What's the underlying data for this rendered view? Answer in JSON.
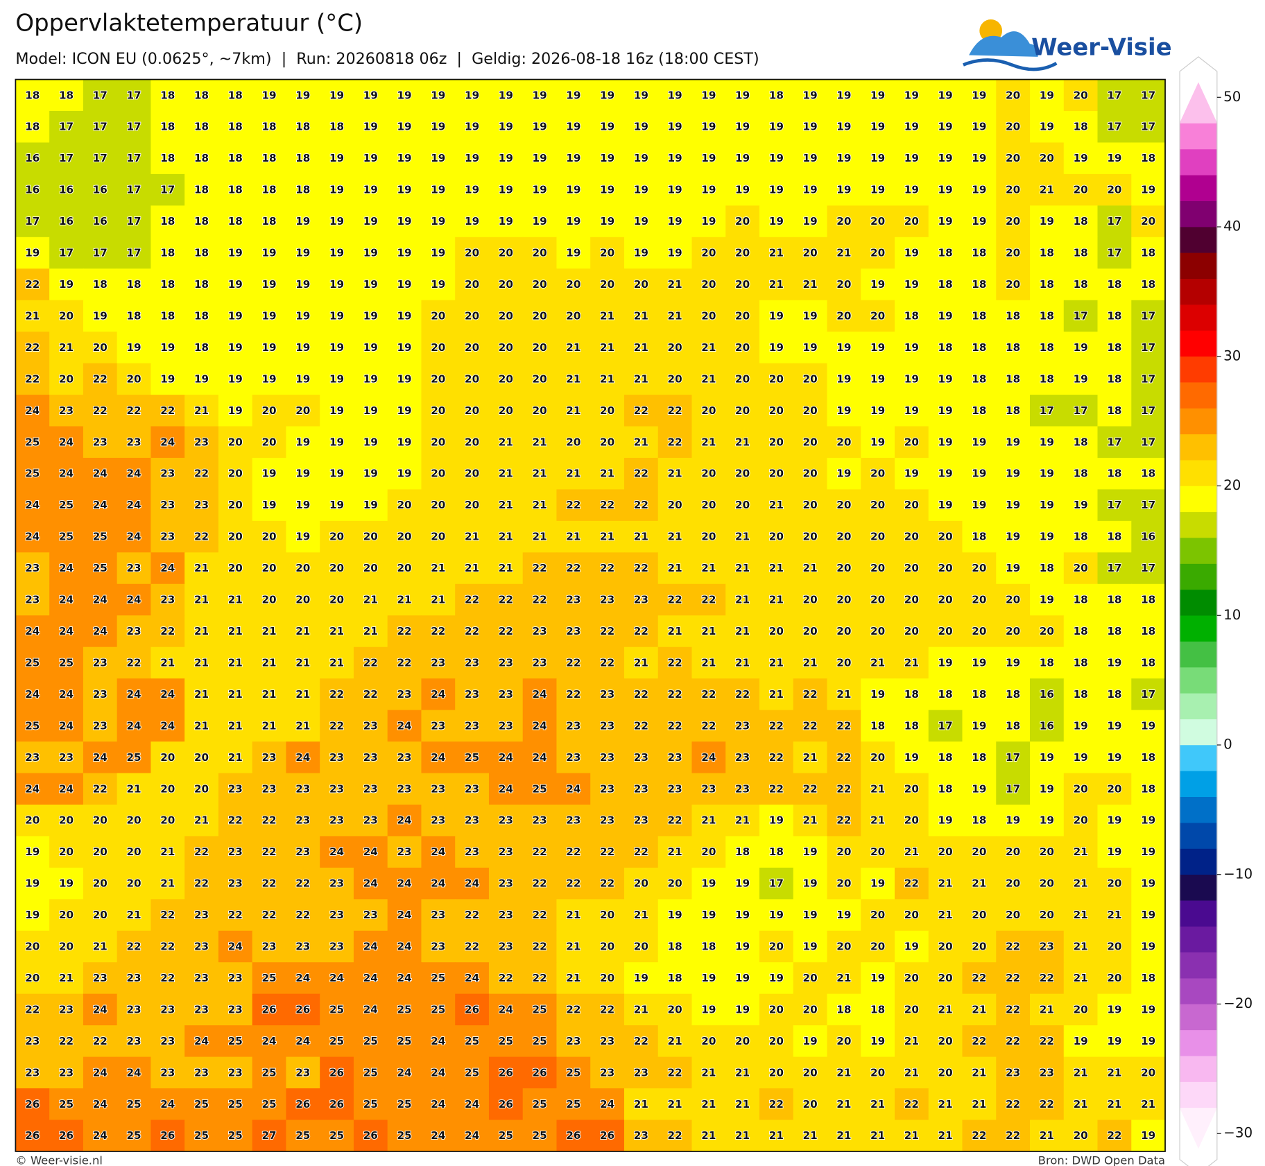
{
  "header": {
    "title": "Oppervlaktetemperatuur (°C)",
    "subtitle": "Model: ICON EU (0.0625°, ~7km)  |  Run: 20260818 06z  |  Geldig: 2026-08-18 16z (18:00 CEST)",
    "logo": "Weer-Visie"
  },
  "chart_data": {
    "type": "heatmap",
    "values": [
      [
        18,
        18,
        17,
        17,
        18,
        18,
        18,
        19,
        19,
        19,
        19,
        19,
        19,
        19,
        19,
        19,
        19,
        19,
        19,
        19,
        19,
        19,
        18,
        19,
        19,
        19,
        19,
        19,
        19,
        20,
        19,
        20,
        17,
        17
      ],
      [
        18,
        17,
        17,
        17,
        18,
        18,
        18,
        18,
        18,
        18,
        19,
        19,
        19,
        19,
        19,
        19,
        19,
        19,
        19,
        19,
        19,
        19,
        19,
        19,
        19,
        19,
        19,
        19,
        19,
        20,
        19,
        18,
        17,
        17
      ],
      [
        16,
        17,
        17,
        17,
        18,
        18,
        18,
        18,
        18,
        19,
        19,
        19,
        19,
        19,
        19,
        19,
        19,
        19,
        19,
        19,
        19,
        19,
        19,
        19,
        19,
        19,
        19,
        19,
        19,
        20,
        20,
        19,
        19,
        18
      ],
      [
        16,
        16,
        16,
        17,
        17,
        18,
        18,
        18,
        18,
        19,
        19,
        19,
        19,
        19,
        19,
        19,
        19,
        19,
        19,
        19,
        19,
        19,
        19,
        19,
        19,
        19,
        19,
        19,
        19,
        20,
        21,
        20,
        20,
        19
      ],
      [
        17,
        16,
        16,
        17,
        18,
        18,
        18,
        18,
        19,
        19,
        19,
        19,
        19,
        19,
        19,
        19,
        19,
        19,
        19,
        19,
        19,
        20,
        19,
        19,
        20,
        20,
        20,
        19,
        19,
        20,
        19,
        18,
        17,
        20
      ],
      [
        19,
        17,
        17,
        17,
        18,
        18,
        19,
        19,
        19,
        19,
        19,
        19,
        19,
        20,
        20,
        20,
        19,
        20,
        19,
        19,
        20,
        20,
        21,
        20,
        21,
        20,
        19,
        18,
        18,
        20,
        18,
        18,
        17,
        18
      ],
      [
        22,
        19,
        18,
        18,
        18,
        18,
        19,
        19,
        19,
        19,
        19,
        19,
        19,
        20,
        20,
        20,
        20,
        20,
        20,
        21,
        20,
        20,
        21,
        21,
        20,
        19,
        19,
        18,
        18,
        20,
        18,
        18,
        18,
        18
      ],
      [
        21,
        20,
        19,
        18,
        18,
        18,
        19,
        19,
        19,
        19,
        19,
        19,
        20,
        20,
        20,
        20,
        20,
        21,
        21,
        21,
        20,
        20,
        19,
        19,
        20,
        20,
        18,
        19,
        18,
        18,
        18,
        17,
        18,
        17
      ],
      [
        22,
        21,
        20,
        19,
        19,
        18,
        19,
        19,
        19,
        19,
        19,
        19,
        20,
        20,
        20,
        20,
        21,
        21,
        21,
        20,
        21,
        20,
        19,
        19,
        19,
        19,
        19,
        18,
        18,
        18,
        18,
        19,
        18,
        17
      ],
      [
        22,
        20,
        22,
        20,
        19,
        19,
        19,
        19,
        19,
        19,
        19,
        19,
        20,
        20,
        20,
        20,
        21,
        21,
        21,
        20,
        21,
        20,
        20,
        20,
        19,
        19,
        19,
        19,
        18,
        18,
        18,
        19,
        18,
        17
      ],
      [
        24,
        23,
        22,
        22,
        22,
        21,
        19,
        20,
        20,
        19,
        19,
        19,
        20,
        20,
        20,
        20,
        21,
        20,
        22,
        22,
        20,
        20,
        20,
        20,
        19,
        19,
        19,
        19,
        18,
        18,
        17,
        17,
        18,
        17
      ],
      [
        25,
        24,
        23,
        23,
        24,
        23,
        20,
        20,
        19,
        19,
        19,
        19,
        20,
        20,
        21,
        21,
        20,
        20,
        21,
        22,
        21,
        21,
        20,
        20,
        20,
        19,
        20,
        19,
        19,
        19,
        19,
        18,
        17,
        17
      ],
      [
        25,
        24,
        24,
        24,
        23,
        22,
        20,
        19,
        19,
        19,
        19,
        19,
        20,
        20,
        21,
        21,
        21,
        21,
        22,
        21,
        20,
        20,
        20,
        20,
        19,
        20,
        19,
        19,
        19,
        19,
        19,
        18,
        18,
        18
      ],
      [
        24,
        25,
        24,
        24,
        23,
        23,
        20,
        19,
        19,
        19,
        19,
        20,
        20,
        20,
        21,
        21,
        22,
        22,
        22,
        20,
        20,
        20,
        21,
        20,
        20,
        20,
        20,
        19,
        19,
        19,
        19,
        19,
        17,
        17
      ],
      [
        24,
        25,
        25,
        24,
        23,
        22,
        20,
        20,
        19,
        20,
        20,
        20,
        20,
        21,
        21,
        21,
        21,
        21,
        21,
        21,
        20,
        21,
        20,
        20,
        20,
        20,
        20,
        20,
        18,
        19,
        19,
        18,
        18,
        16
      ],
      [
        23,
        24,
        25,
        23,
        24,
        21,
        20,
        20,
        20,
        20,
        20,
        20,
        21,
        21,
        21,
        22,
        22,
        22,
        22,
        21,
        21,
        21,
        21,
        21,
        20,
        20,
        20,
        20,
        20,
        19,
        18,
        20,
        17,
        17
      ],
      [
        23,
        24,
        24,
        24,
        23,
        21,
        21,
        20,
        20,
        20,
        21,
        21,
        21,
        22,
        22,
        22,
        23,
        23,
        23,
        22,
        22,
        21,
        21,
        20,
        20,
        20,
        20,
        20,
        20,
        20,
        19,
        18,
        18,
        18
      ],
      [
        24,
        24,
        24,
        23,
        22,
        21,
        21,
        21,
        21,
        21,
        21,
        22,
        22,
        22,
        22,
        23,
        23,
        22,
        22,
        21,
        21,
        21,
        20,
        20,
        20,
        20,
        20,
        20,
        20,
        20,
        20,
        18,
        18,
        18
      ],
      [
        25,
        25,
        23,
        22,
        21,
        21,
        21,
        21,
        21,
        21,
        22,
        22,
        23,
        23,
        23,
        23,
        22,
        22,
        21,
        22,
        21,
        21,
        21,
        21,
        20,
        21,
        21,
        19,
        19,
        19,
        18,
        18,
        19,
        18
      ],
      [
        24,
        24,
        23,
        24,
        24,
        21,
        21,
        21,
        21,
        22,
        22,
        23,
        24,
        23,
        23,
        24,
        22,
        23,
        22,
        22,
        22,
        22,
        21,
        22,
        21,
        19,
        18,
        18,
        18,
        18,
        16,
        18,
        18,
        17
      ],
      [
        25,
        24,
        23,
        24,
        24,
        21,
        21,
        21,
        21,
        22,
        23,
        24,
        23,
        23,
        23,
        24,
        23,
        23,
        22,
        22,
        22,
        23,
        22,
        22,
        22,
        18,
        18,
        17,
        19,
        18,
        16,
        19,
        19,
        19
      ],
      [
        23,
        23,
        24,
        25,
        20,
        20,
        21,
        23,
        24,
        23,
        23,
        23,
        24,
        25,
        24,
        24,
        23,
        23,
        23,
        23,
        24,
        23,
        22,
        21,
        22,
        20,
        19,
        18,
        18,
        17,
        19,
        19,
        19,
        18
      ],
      [
        24,
        24,
        22,
        21,
        20,
        20,
        23,
        23,
        23,
        23,
        23,
        23,
        23,
        23,
        24,
        25,
        24,
        23,
        23,
        23,
        23,
        23,
        22,
        22,
        22,
        21,
        20,
        18,
        19,
        17,
        19,
        20,
        20,
        18
      ],
      [
        20,
        20,
        20,
        20,
        20,
        21,
        22,
        22,
        23,
        23,
        23,
        24,
        23,
        23,
        23,
        23,
        23,
        23,
        23,
        22,
        21,
        21,
        19,
        21,
        22,
        21,
        20,
        19,
        18,
        19,
        19,
        20,
        19,
        19
      ],
      [
        19,
        20,
        20,
        20,
        21,
        22,
        23,
        22,
        23,
        24,
        24,
        23,
        24,
        23,
        23,
        22,
        22,
        22,
        22,
        21,
        20,
        18,
        18,
        19,
        20,
        20,
        21,
        20,
        20,
        20,
        20,
        21,
        19,
        19
      ],
      [
        19,
        19,
        20,
        20,
        21,
        22,
        23,
        22,
        22,
        23,
        24,
        24,
        24,
        24,
        23,
        22,
        22,
        22,
        20,
        20,
        19,
        19,
        17,
        19,
        20,
        19,
        22,
        21,
        21,
        20,
        20,
        21,
        20,
        19
      ],
      [
        19,
        20,
        20,
        21,
        22,
        23,
        22,
        22,
        22,
        23,
        23,
        24,
        23,
        22,
        23,
        22,
        21,
        20,
        21,
        19,
        19,
        19,
        19,
        19,
        19,
        20,
        20,
        21,
        20,
        20,
        20,
        21,
        21,
        19
      ],
      [
        20,
        20,
        21,
        22,
        22,
        23,
        24,
        23,
        23,
        23,
        24,
        24,
        23,
        22,
        23,
        22,
        21,
        20,
        20,
        18,
        18,
        19,
        20,
        19,
        20,
        20,
        19,
        20,
        20,
        22,
        23,
        21,
        20,
        19
      ],
      [
        20,
        21,
        23,
        23,
        22,
        23,
        23,
        25,
        24,
        24,
        24,
        24,
        25,
        24,
        22,
        22,
        21,
        20,
        19,
        18,
        19,
        19,
        19,
        20,
        21,
        19,
        20,
        20,
        22,
        22,
        22,
        21,
        20,
        18
      ],
      [
        22,
        23,
        24,
        23,
        23,
        23,
        23,
        26,
        26,
        25,
        24,
        25,
        25,
        26,
        24,
        25,
        22,
        22,
        21,
        20,
        19,
        19,
        20,
        20,
        18,
        18,
        20,
        21,
        21,
        22,
        21,
        20,
        19,
        19
      ],
      [
        23,
        22,
        22,
        23,
        23,
        24,
        25,
        24,
        24,
        25,
        25,
        25,
        24,
        25,
        25,
        25,
        23,
        23,
        22,
        21,
        20,
        20,
        20,
        19,
        20,
        19,
        21,
        20,
        22,
        22,
        22,
        19,
        19,
        19
      ],
      [
        23,
        23,
        24,
        24,
        23,
        23,
        23,
        25,
        23,
        26,
        25,
        24,
        24,
        25,
        26,
        26,
        25,
        23,
        23,
        22,
        21,
        21,
        20,
        20,
        21,
        20,
        21,
        20,
        21,
        23,
        23,
        21,
        21,
        20
      ],
      [
        26,
        25,
        24,
        25,
        24,
        25,
        25,
        25,
        26,
        26,
        25,
        25,
        24,
        24,
        26,
        25,
        25,
        24,
        21,
        21,
        21,
        21,
        22,
        20,
        21,
        21,
        22,
        21,
        21,
        22,
        22,
        21,
        21,
        21
      ],
      [
        26,
        26,
        24,
        25,
        26,
        25,
        25,
        27,
        25,
        25,
        26,
        25,
        24,
        24,
        25,
        25,
        26,
        26,
        23,
        22,
        21,
        21,
        21,
        21,
        21,
        21,
        21,
        21,
        22,
        22,
        21,
        20,
        22,
        19
      ]
    ],
    "colorbar": {
      "clim": [
        -30,
        50
      ],
      "cticks": [
        50,
        40,
        30,
        20,
        10,
        0,
        {
          "value": -10,
          "label": "−10"
        },
        {
          "value": -20,
          "label": "−20"
        },
        {
          "value": -30,
          "label": "−30"
        }
      ],
      "colors": [
        "#fff0fc",
        "#fdd8f8",
        "#f8b8f0",
        "#e890e8",
        "#c868d0",
        "#a848c0",
        "#8a30b0",
        "#6a1aa0",
        "#4a0a90",
        "#1a0a50",
        "#002288",
        "#0048aa",
        "#0070c8",
        "#00a0e6",
        "#40c8fa",
        "#d0fce0",
        "#a8f0b0",
        "#78dc78",
        "#44c044",
        "#00b000",
        "#008c00",
        "#3aaa00",
        "#7cc400",
        "#c8dc00",
        "#ffff00",
        "#ffe000",
        "#ffc000",
        "#ff9000",
        "#ff6a00",
        "#ff3c00",
        "#ff0000",
        "#dc0000",
        "#b40000",
        "#8c0000",
        "#500030",
        "#800070",
        "#b00090",
        "#e040c0",
        "#f880d8",
        "#fcc0ec"
      ]
    }
  },
  "footer": {
    "left": "© Weer-visie.nl",
    "right": "Bron: DWD Open Data"
  }
}
